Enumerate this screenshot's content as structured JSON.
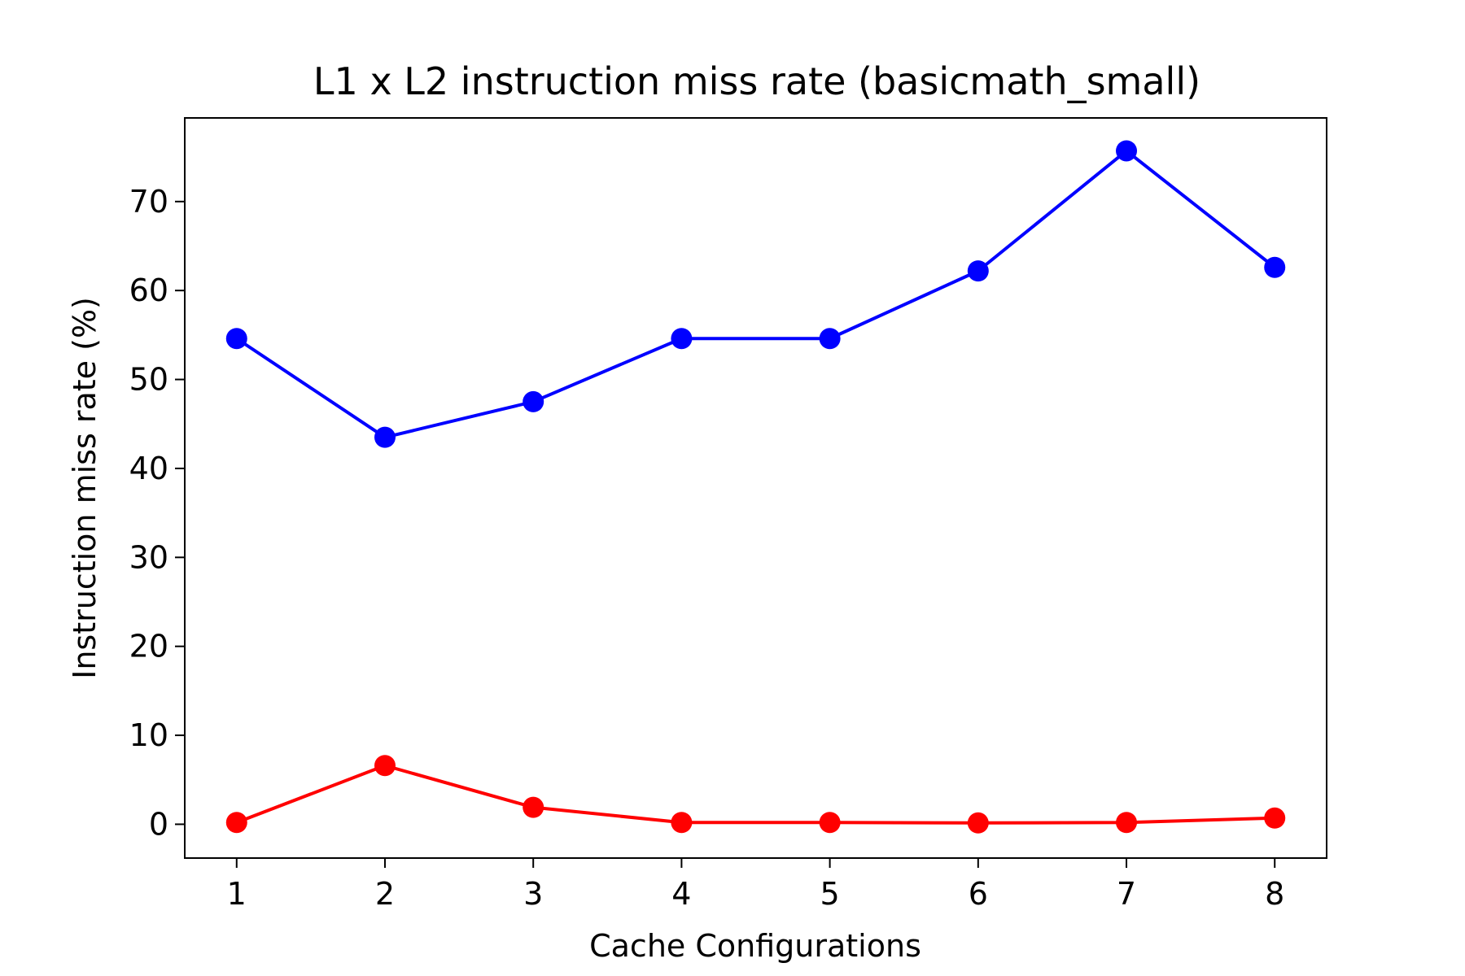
{
  "chart_data": {
    "type": "line",
    "title": "L1 x L2 instruction miss rate (basicmath_small)",
    "xlabel": "Cache Configurations",
    "ylabel": "Instruction miss rate (%)",
    "x": [
      1,
      2,
      3,
      4,
      5,
      6,
      7,
      8
    ],
    "x_ticks": [
      "1",
      "2",
      "3",
      "4",
      "5",
      "6",
      "7",
      "8"
    ],
    "y_ticks": [
      "0",
      "10",
      "20",
      "30",
      "40",
      "50",
      "60",
      "70"
    ],
    "xlim": [
      0.65,
      8.35
    ],
    "ylim": [
      -3.8,
      79.4
    ],
    "grid": false,
    "series": [
      {
        "color": "#0000ff",
        "marker": "circle",
        "values": [
          54.6,
          43.5,
          47.5,
          54.6,
          54.6,
          62.2,
          75.7,
          62.6
        ]
      },
      {
        "color": "#ff0000",
        "marker": "circle",
        "values": [
          0.2,
          6.6,
          1.9,
          0.2,
          0.2,
          0.15,
          0.2,
          0.7
        ]
      }
    ]
  }
}
